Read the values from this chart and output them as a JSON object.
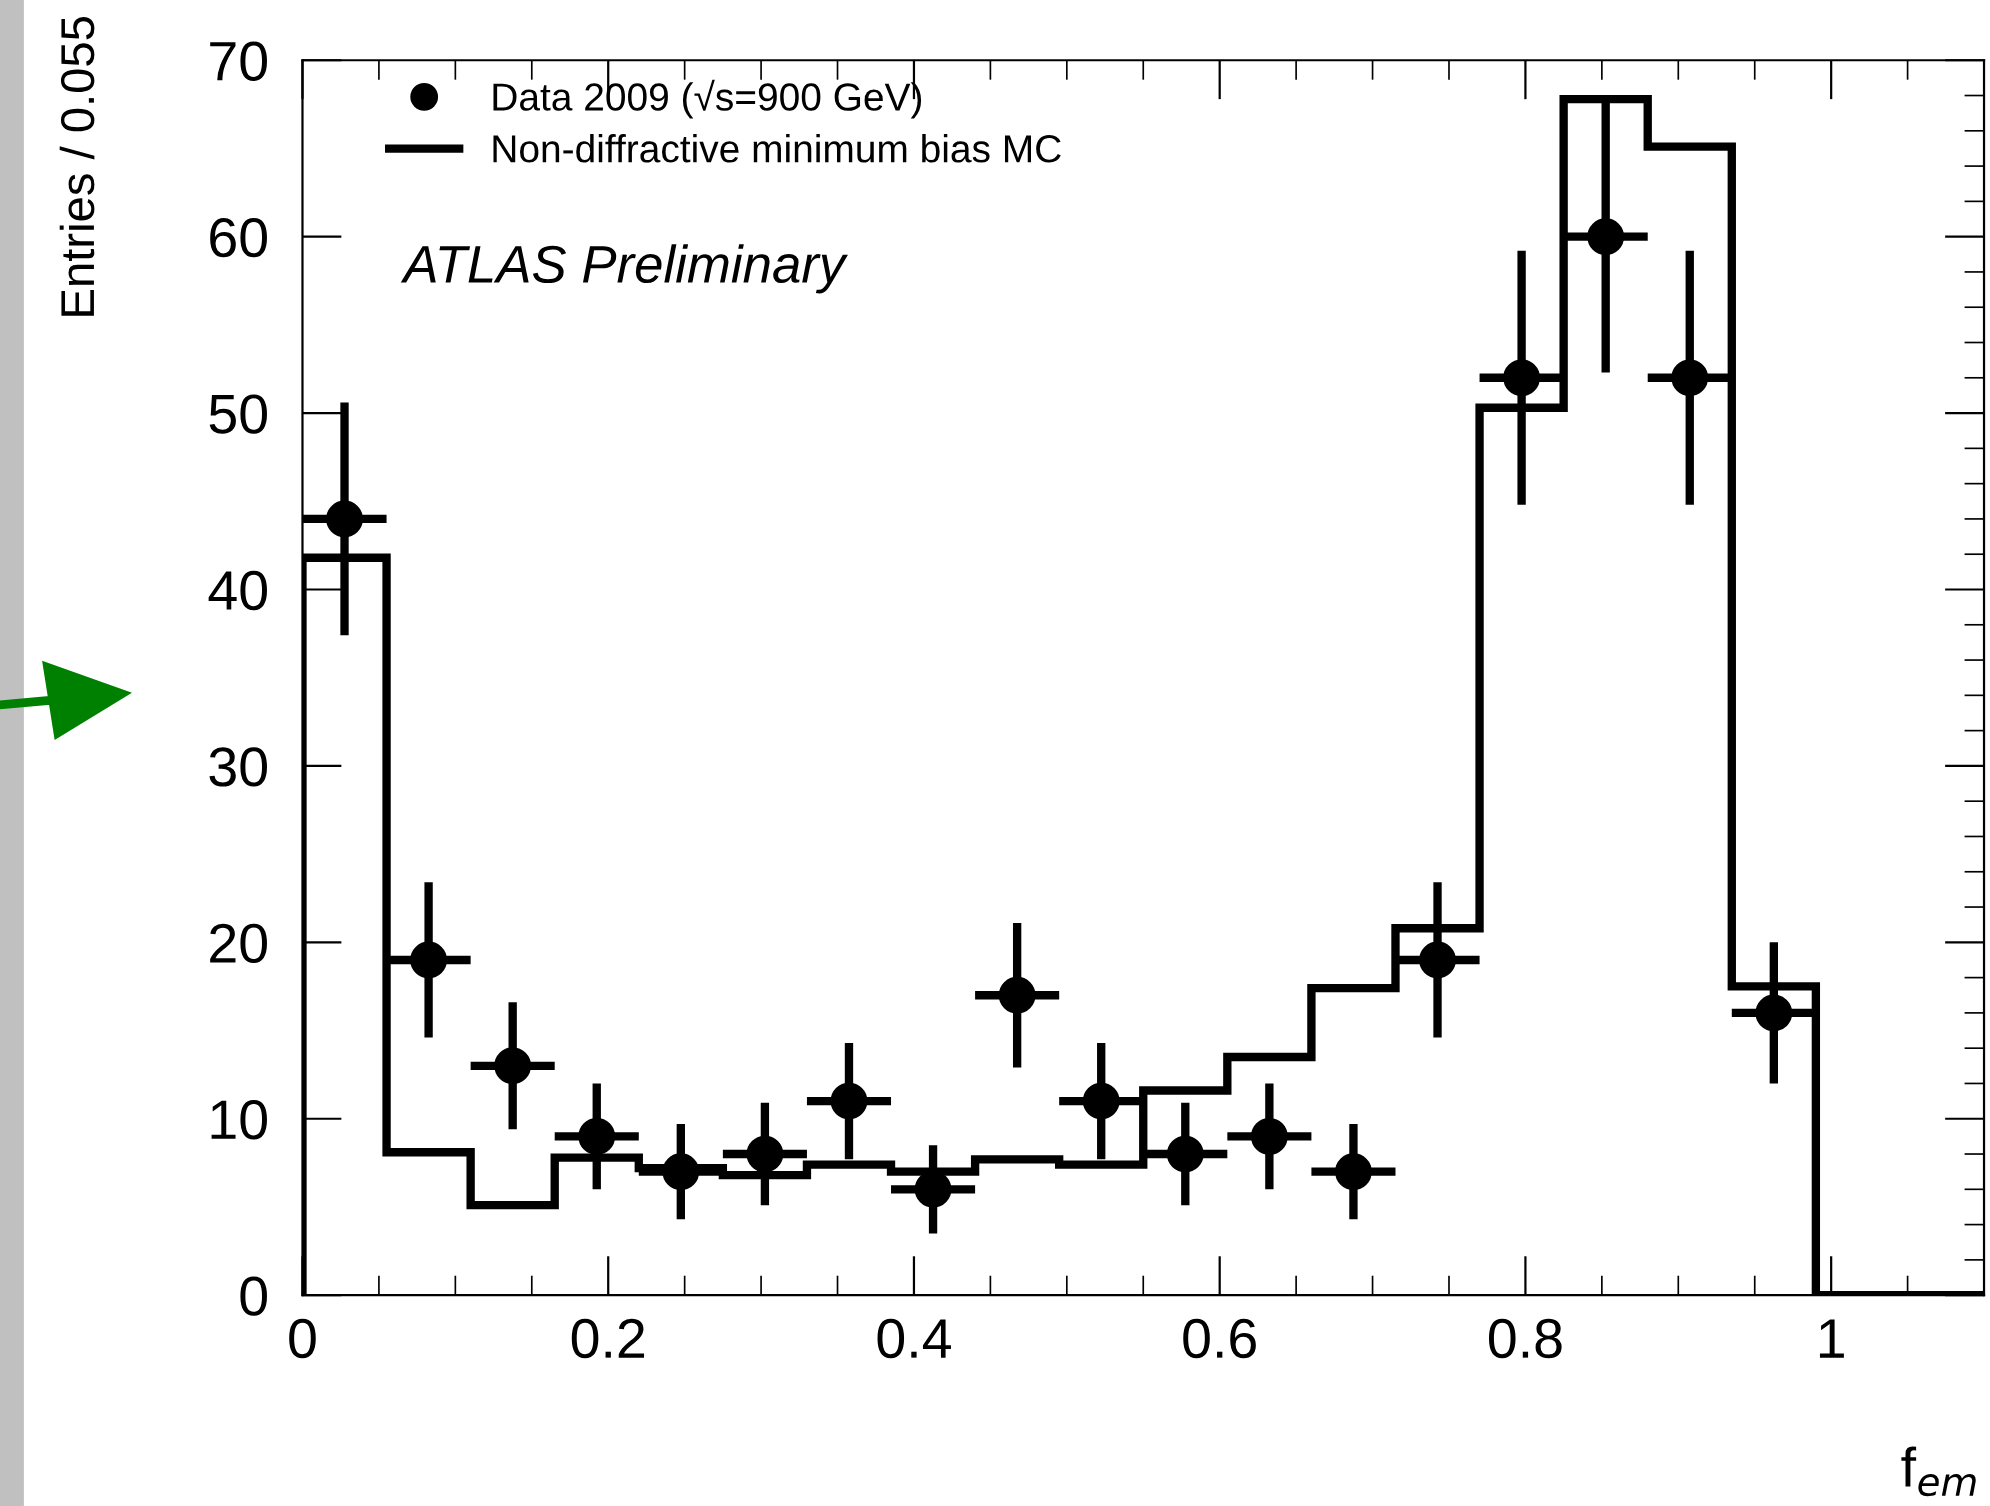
{
  "chart_data": {
    "type": "histogram",
    "xlabel": "f$_{em}$",
    "ylabel": "Entries / 0.055",
    "annotations": [
      "ATLAS Preliminary"
    ],
    "bins": [
      0,
      0.055,
      0.11,
      0.165,
      0.22,
      0.275,
      0.33,
      0.385,
      0.44,
      0.495,
      0.55,
      0.605,
      0.66,
      0.715,
      0.77,
      0.825,
      0.88,
      0.935,
      0.99,
      1.045,
      1.1
    ],
    "series": [
      {
        "name": "Data 2009 (√s=900 GeV)",
        "type": "scatter",
        "color": "#000000",
        "marker": "circle",
        "x": [
          0.0275,
          0.0825,
          0.1375,
          0.1925,
          0.2475,
          0.3025,
          0.3575,
          0.4125,
          0.4675,
          0.5225,
          0.5775,
          0.6325,
          0.6875,
          0.7425,
          0.7975,
          0.8525,
          0.9075,
          0.9625
        ],
        "values": [
          44,
          19,
          13,
          9,
          7,
          8,
          11,
          6,
          17,
          11,
          8,
          9,
          7,
          19,
          52,
          60,
          52,
          16
        ],
        "errors": [
          6.6,
          4.4,
          3.6,
          3,
          2.7,
          2.9,
          3.3,
          2.5,
          4.1,
          3.3,
          2.9,
          3,
          2.7,
          4.4,
          7.2,
          7.7,
          7.2,
          4
        ],
        "xerrors": [
          0.0275,
          0.0275,
          0.0275,
          0.0275,
          0.0275,
          0.0275,
          0.0275,
          0.0275,
          0.0275,
          0.0275,
          0.0275,
          0.0275,
          0.0275,
          0.0275,
          0.0275,
          0.0275,
          0.0275,
          0.0275
        ]
      },
      {
        "name": "Non-diffractive minimum bias MC",
        "color": "#000000",
        "values": [
          41.8,
          8.1,
          5.1,
          7.8,
          7.2,
          6.8,
          7.4,
          7.0,
          7.7,
          7.4,
          11.6,
          13.5,
          17.4,
          20.8,
          50.3,
          67.8,
          65.1,
          17.5,
          0,
          0
        ]
      }
    ],
    "xlim": [
      0,
      1.1
    ],
    "xticks": [
      0,
      0.2,
      0.4,
      0.6,
      0.8,
      1
    ],
    "ylim": [
      0,
      70
    ],
    "yticks": [
      0,
      10,
      20,
      30,
      40,
      50,
      60,
      70
    ],
    "grid": false,
    "legend": "top left"
  }
}
